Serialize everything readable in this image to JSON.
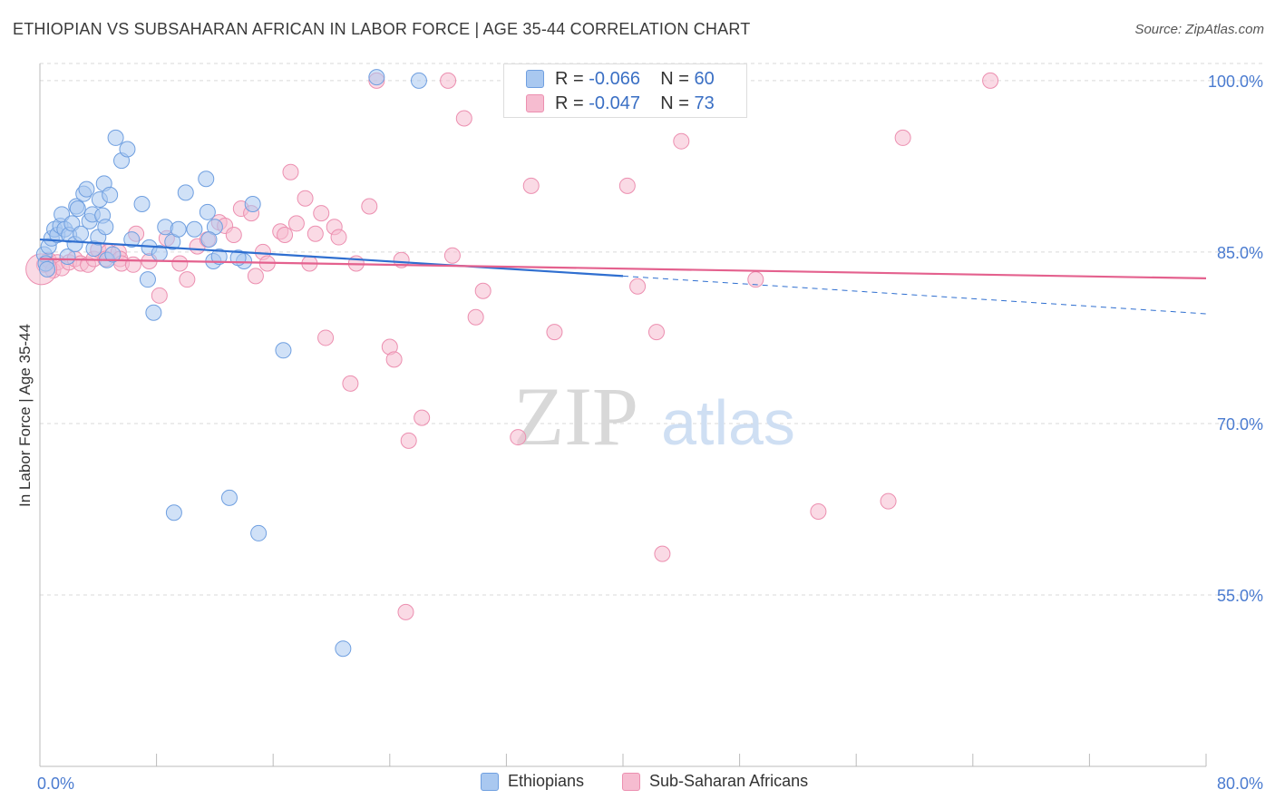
{
  "title": "ETHIOPIAN VS SUBSAHARAN AFRICAN IN LABOR FORCE | AGE 35-44 CORRELATION CHART",
  "source": "Source: ZipAtlas.com",
  "watermark": {
    "zip": "ZIP",
    "atlas": "atlas"
  },
  "colors": {
    "ethiopians_fill": "#a9c8f0",
    "ethiopians_stroke": "#6f9fe0",
    "ethiopians_line": "#2f6fd0",
    "subsaharan_fill": "#f6bcd0",
    "subsaharan_stroke": "#ec8fb0",
    "subsaharan_line": "#e4618e",
    "tick_label": "#4a7bd0",
    "grid": "#d9d9d9"
  },
  "inset_legend": {
    "rows": [
      {
        "r_label": "R = ",
        "r_value": "-0.066",
        "n_label": "N = ",
        "n_value": "60"
      },
      {
        "r_label": "R = ",
        "r_value": "-0.047",
        "n_label": "N = ",
        "n_value": "73"
      }
    ]
  },
  "bottom_legend": [
    "Ethiopians",
    "Sub-Saharan Africans"
  ],
  "chart_data": {
    "type": "scatter",
    "title": "ETHIOPIAN VS SUBSAHARAN AFRICAN IN LABOR FORCE | AGE 35-44 CORRELATION CHART",
    "xlabel": "",
    "ylabel": "In Labor Force | Age 35-44",
    "xlim": [
      0,
      80
    ],
    "ylim": [
      40,
      101.5
    ],
    "x_tick_labels": [
      "0.0%",
      "80.0%"
    ],
    "y_ticks": [
      55,
      70,
      85,
      100
    ],
    "y_tick_labels": [
      "55.0%",
      "70.0%",
      "85.0%",
      "100.0%"
    ],
    "grid": "horizontal dashed",
    "legend_position": "bottom",
    "series": [
      {
        "name": "Ethiopians",
        "r": -0.066,
        "n": 60,
        "trend": {
          "x": [
            0,
            40
          ],
          "y": [
            86.1,
            82.9
          ],
          "dashed_to": [
            80,
            79.6
          ]
        },
        "points": [
          [
            0.3,
            84.8
          ],
          [
            0.4,
            84.0
          ],
          [
            0.5,
            83.5
          ],
          [
            0.6,
            85.5
          ],
          [
            0.8,
            86.2
          ],
          [
            1.0,
            87.0
          ],
          [
            1.2,
            86.5
          ],
          [
            1.4,
            87.3
          ],
          [
            1.5,
            88.3
          ],
          [
            1.7,
            87.0
          ],
          [
            1.9,
            84.6
          ],
          [
            2.0,
            86.5
          ],
          [
            2.2,
            87.5
          ],
          [
            2.4,
            85.7
          ],
          [
            2.5,
            89.0
          ],
          [
            2.6,
            88.8
          ],
          [
            2.8,
            86.6
          ],
          [
            3.0,
            90.1
          ],
          [
            3.2,
            90.5
          ],
          [
            3.4,
            87.7
          ],
          [
            3.6,
            88.3
          ],
          [
            3.7,
            85.3
          ],
          [
            4.0,
            86.3
          ],
          [
            4.1,
            89.6
          ],
          [
            4.3,
            88.2
          ],
          [
            4.4,
            91.0
          ],
          [
            4.5,
            87.2
          ],
          [
            4.6,
            84.3
          ],
          [
            4.8,
            90.0
          ],
          [
            5.0,
            84.8
          ],
          [
            5.2,
            95.0
          ],
          [
            5.6,
            93.0
          ],
          [
            6.0,
            94.0
          ],
          [
            6.3,
            86.1
          ],
          [
            7.0,
            89.2
          ],
          [
            7.4,
            82.6
          ],
          [
            7.5,
            85.4
          ],
          [
            7.8,
            79.7
          ],
          [
            8.2,
            84.9
          ],
          [
            8.6,
            87.2
          ],
          [
            9.1,
            85.9
          ],
          [
            10.0,
            90.2
          ],
          [
            10.6,
            87.0
          ],
          [
            11.4,
            91.4
          ],
          [
            11.5,
            88.5
          ],
          [
            12.0,
            87.2
          ],
          [
            11.9,
            84.2
          ],
          [
            12.3,
            84.6
          ],
          [
            14.0,
            84.2
          ],
          [
            11.6,
            86.1
          ],
          [
            13.0,
            63.5
          ],
          [
            14.6,
            89.2
          ],
          [
            15.0,
            60.4
          ],
          [
            16.7,
            76.4
          ],
          [
            20.8,
            50.3
          ],
          [
            23.1,
            100.3
          ],
          [
            9.2,
            62.2
          ],
          [
            13.6,
            84.5
          ],
          [
            9.5,
            87.0
          ],
          [
            26.0,
            100.0
          ]
        ]
      },
      {
        "name": "Sub-Saharan Africans",
        "r": -0.047,
        "n": 73,
        "trend": {
          "x": [
            0,
            80
          ],
          "y": [
            84.4,
            82.7
          ]
        },
        "points": [
          [
            0.3,
            83.9
          ],
          [
            0.6,
            84.3
          ],
          [
            0.9,
            83.4
          ],
          [
            1.2,
            84.1
          ],
          [
            1.5,
            83.6
          ],
          [
            2.0,
            84.1
          ],
          [
            2.4,
            84.4
          ],
          [
            2.8,
            84.0
          ],
          [
            3.3,
            83.9
          ],
          [
            3.7,
            84.4
          ],
          [
            4.0,
            85.2
          ],
          [
            4.7,
            85.0
          ],
          [
            5.4,
            85.0
          ],
          [
            5.5,
            84.4
          ],
          [
            5.6,
            84.0
          ],
          [
            6.4,
            83.9
          ],
          [
            6.6,
            86.6
          ],
          [
            7.5,
            84.2
          ],
          [
            8.2,
            81.2
          ],
          [
            8.7,
            86.2
          ],
          [
            9.6,
            84.0
          ],
          [
            10.1,
            82.6
          ],
          [
            10.8,
            85.5
          ],
          [
            11.5,
            86.1
          ],
          [
            12.3,
            87.6
          ],
          [
            12.7,
            87.3
          ],
          [
            13.3,
            86.5
          ],
          [
            13.8,
            88.8
          ],
          [
            14.5,
            88.4
          ],
          [
            14.8,
            82.9
          ],
          [
            15.3,
            85.0
          ],
          [
            15.6,
            84.0
          ],
          [
            16.5,
            86.8
          ],
          [
            16.8,
            86.5
          ],
          [
            17.2,
            92.0
          ],
          [
            17.6,
            87.5
          ],
          [
            18.2,
            89.7
          ],
          [
            18.5,
            84.0
          ],
          [
            18.9,
            86.6
          ],
          [
            19.3,
            88.4
          ],
          [
            19.6,
            77.5
          ],
          [
            20.2,
            87.2
          ],
          [
            20.5,
            86.3
          ],
          [
            21.3,
            73.5
          ],
          [
            21.7,
            84.0
          ],
          [
            22.6,
            89.0
          ],
          [
            24.0,
            76.7
          ],
          [
            24.3,
            75.6
          ],
          [
            24.8,
            84.3
          ],
          [
            25.3,
            68.5
          ],
          [
            26.2,
            70.5
          ],
          [
            28.3,
            84.7
          ],
          [
            29.1,
            96.7
          ],
          [
            29.9,
            79.3
          ],
          [
            30.4,
            81.6
          ],
          [
            32.8,
            68.8
          ],
          [
            33.7,
            90.8
          ],
          [
            35.3,
            78.0
          ],
          [
            25.1,
            53.5
          ],
          [
            23.1,
            100.0
          ],
          [
            28.0,
            100.0
          ],
          [
            40.3,
            90.8
          ],
          [
            41.0,
            82.0
          ],
          [
            42.7,
            58.6
          ],
          [
            42.3,
            78.0
          ],
          [
            44.0,
            94.7
          ],
          [
            49.1,
            82.6
          ],
          [
            53.4,
            62.3
          ],
          [
            59.2,
            95.0
          ],
          [
            58.2,
            63.2
          ],
          [
            65.2,
            100.0
          ],
          [
            4.5,
            84.4
          ],
          [
            0.1,
            83.5
          ]
        ]
      }
    ]
  }
}
